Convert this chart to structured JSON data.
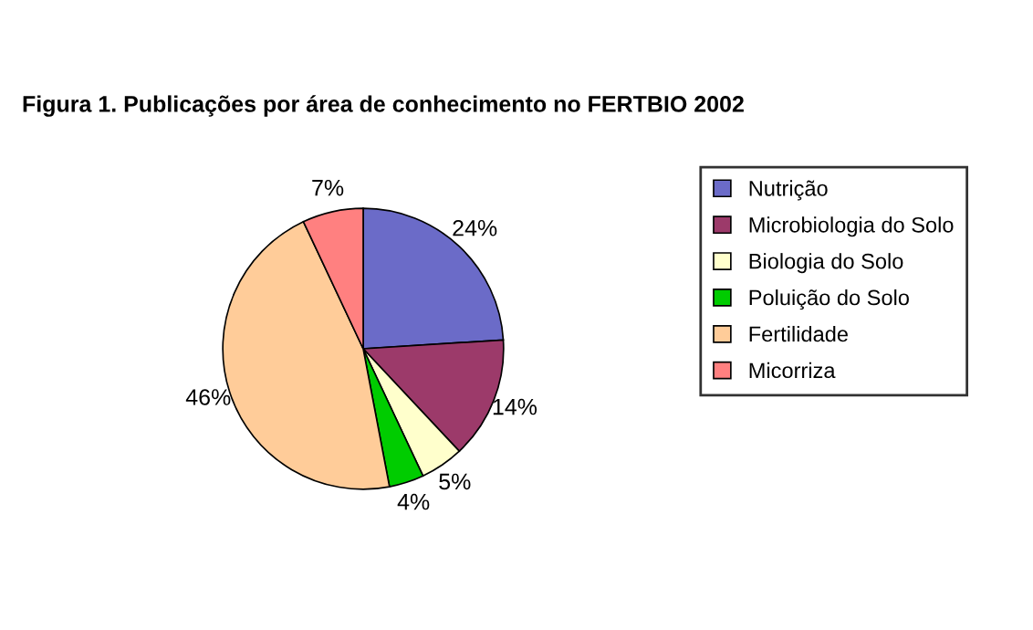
{
  "chart_data": {
    "type": "pie",
    "title": "Figura 1. Publicações por área de conhecimento no FERTBIO 2002",
    "categories": [
      "Nutrição",
      "Microbiologia do Solo",
      "Biologia do Solo",
      "Poluição do Solo",
      "Fertilidade",
      "Micorriza"
    ],
    "values": [
      24,
      14,
      5,
      4,
      46,
      7
    ],
    "colors": [
      "#6b6bc8",
      "#9c3a6a",
      "#ffffcc",
      "#00cc00",
      "#ffcc99",
      "#ff8080"
    ],
    "value_labels": [
      "24%",
      "14%",
      "5%",
      "4%",
      "46%",
      "7%"
    ],
    "legend": "right"
  }
}
